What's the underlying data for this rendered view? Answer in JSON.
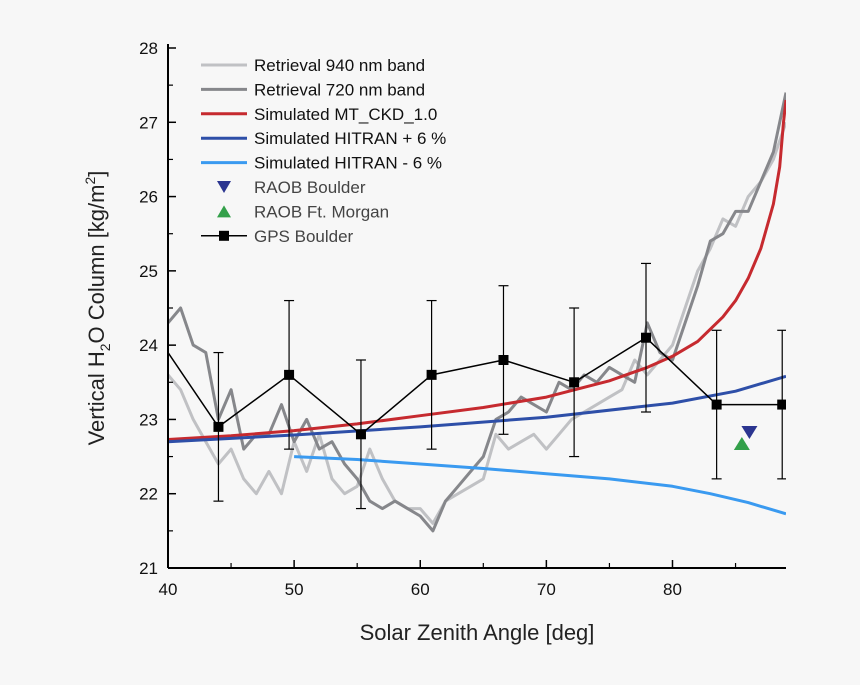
{
  "chart_data": {
    "type": "line",
    "xlabel": "Solar Zenith Angle [deg]",
    "ylabel": {
      "main": "Vertical H",
      "sub": "2",
      "mid": "O Column [kg/m",
      "sup": "2",
      "end": "]"
    },
    "xlim": [
      40,
      89
    ],
    "ylim": [
      21,
      28
    ],
    "xticks": [
      40,
      50,
      60,
      70,
      80
    ],
    "yticks": [
      21,
      22,
      23,
      24,
      25,
      26,
      27,
      28
    ],
    "grid": false,
    "legend_placement": "top-left",
    "series": [
      {
        "name": "Retrieval 940 nm band",
        "kind": "line",
        "color": "#c0c1c4",
        "x": [
          40,
          41,
          42,
          43,
          44,
          45,
          46,
          47,
          48,
          49,
          50,
          51,
          52,
          53,
          54,
          55,
          56,
          57,
          58,
          59,
          60,
          61,
          62,
          63,
          64,
          65,
          66,
          67,
          68,
          69,
          70,
          71,
          72,
          73,
          74,
          75,
          76,
          77,
          78,
          79,
          80,
          81,
          82,
          83,
          84,
          85,
          86,
          87,
          88,
          89
        ],
        "y": [
          23.6,
          23.4,
          23.0,
          22.7,
          22.4,
          22.6,
          22.2,
          22.0,
          22.3,
          22.0,
          22.7,
          22.3,
          22.8,
          22.2,
          22.0,
          22.1,
          22.6,
          22.2,
          21.9,
          21.8,
          21.8,
          21.6,
          21.9,
          22.0,
          22.1,
          22.2,
          22.8,
          22.6,
          22.7,
          22.8,
          22.6,
          22.8,
          23.0,
          23.1,
          23.2,
          23.3,
          23.4,
          23.8,
          23.6,
          23.8,
          24.0,
          24.5,
          25.0,
          25.3,
          25.7,
          25.6,
          26.0,
          26.2,
          26.5,
          27.0
        ]
      },
      {
        "name": "Retrieval 720 nm band",
        "kind": "line",
        "color": "#86878b",
        "x": [
          40,
          41,
          42,
          43,
          44,
          45,
          46,
          47,
          48,
          49,
          50,
          51,
          52,
          53,
          54,
          55,
          56,
          57,
          58,
          59,
          60,
          61,
          62,
          63,
          64,
          65,
          66,
          67,
          68,
          69,
          70,
          71,
          72,
          73,
          74,
          75,
          76,
          77,
          78,
          79,
          80,
          81,
          82,
          83,
          84,
          85,
          86,
          87,
          88,
          89
        ],
        "y": [
          24.3,
          24.5,
          24.0,
          23.9,
          23.0,
          23.4,
          22.6,
          22.8,
          22.8,
          23.2,
          22.7,
          23.0,
          22.6,
          22.7,
          22.4,
          22.2,
          21.9,
          21.8,
          21.9,
          21.8,
          21.7,
          21.5,
          21.9,
          22.1,
          22.3,
          22.5,
          23.0,
          23.1,
          23.3,
          23.2,
          23.1,
          23.5,
          23.4,
          23.6,
          23.5,
          23.7,
          23.6,
          23.5,
          24.3,
          23.9,
          23.8,
          24.3,
          24.8,
          25.4,
          25.5,
          25.8,
          25.8,
          26.2,
          26.6,
          27.4
        ]
      },
      {
        "name": "Simulated MT_CKD_1.0",
        "kind": "line",
        "color": "#c62a2f",
        "x": [
          40,
          45,
          50,
          55,
          60,
          65,
          70,
          75,
          78,
          80,
          82,
          84,
          85,
          86,
          87,
          88,
          88.5,
          88.8,
          89
        ],
        "y": [
          22.73,
          22.78,
          22.85,
          22.94,
          23.05,
          23.16,
          23.3,
          23.52,
          23.7,
          23.85,
          24.05,
          24.38,
          24.6,
          24.9,
          25.3,
          25.9,
          26.4,
          27.0,
          27.3
        ]
      },
      {
        "name": "Simulated HITRAN + 6 %",
        "kind": "line",
        "color": "#2e4fa8",
        "x": [
          40,
          50,
          60,
          70,
          80,
          85,
          89
        ],
        "y": [
          22.7,
          22.79,
          22.9,
          23.03,
          23.22,
          23.38,
          23.58
        ]
      },
      {
        "name": "Simulated HITRAN - 6 %",
        "kind": "line",
        "color": "#3a9af0",
        "x": [
          50,
          55,
          60,
          65,
          70,
          75,
          80,
          83,
          86,
          88,
          89
        ],
        "y": [
          22.5,
          22.46,
          22.4,
          22.34,
          22.27,
          22.2,
          22.1,
          22.0,
          21.88,
          21.78,
          21.73
        ]
      },
      {
        "name": "RAOB Boulder",
        "kind": "marker",
        "marker": "triangle-down",
        "color": "#2b3590",
        "x": [
          86.1
        ],
        "y": [
          22.83
        ]
      },
      {
        "name": "RAOB Ft. Morgan",
        "kind": "marker",
        "marker": "triangle-up",
        "color": "#33a04a",
        "x": [
          85.5
        ],
        "y": [
          22.67
        ]
      },
      {
        "name": "GPS Boulder",
        "kind": "line-marker",
        "marker": "square",
        "color": "#000000",
        "x": [
          40,
          44,
          49.6,
          55.3,
          60.9,
          66.6,
          72.2,
          77.9,
          83.5,
          88.7
        ],
        "y": [
          23.9,
          22.9,
          23.6,
          22.8,
          23.6,
          23.8,
          23.5,
          24.1,
          23.2,
          23.2
        ],
        "error": [
          null,
          1.0,
          1.0,
          1.0,
          1.0,
          1.0,
          1.0,
          1.0,
          1.0,
          1.0
        ]
      }
    ]
  }
}
